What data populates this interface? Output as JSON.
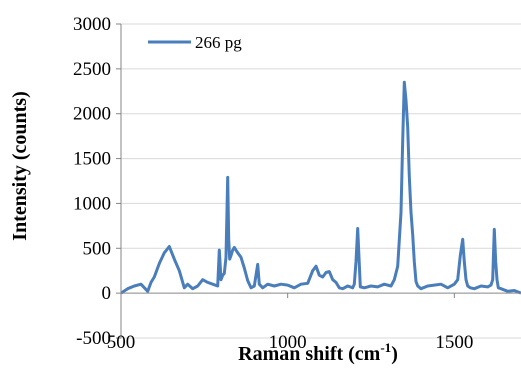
{
  "chart_data": {
    "type": "line",
    "title": "",
    "xlabel": "Raman shift (cm",
    "xlabel_sup": "-1",
    "xlabel_close": ")",
    "ylabel": "Intensity (counts)",
    "xlim": [
      500,
      1700
    ],
    "ylim": [
      -500,
      3000
    ],
    "xticks": [
      500,
      1000,
      1500
    ],
    "yticks": [
      -500,
      0,
      500,
      1000,
      1500,
      2000,
      2500,
      3000
    ],
    "grid": "horizontal",
    "legend_position": "top-left",
    "color": "#4a7ebb",
    "series": [
      {
        "name": "266 pg",
        "x": [
          500,
          520,
          540,
          560,
          580,
          590,
          600,
          615,
          630,
          645,
          660,
          675,
          690,
          700,
          715,
          730,
          745,
          760,
          775,
          790,
          795,
          800,
          805,
          810,
          815,
          820,
          823,
          826,
          830,
          835,
          840,
          850,
          860,
          870,
          880,
          890,
          900,
          905,
          910,
          915,
          925,
          940,
          960,
          980,
          1000,
          1020,
          1040,
          1060,
          1075,
          1085,
          1095,
          1105,
          1115,
          1125,
          1135,
          1145,
          1155,
          1165,
          1180,
          1195,
          1200,
          1205,
          1210,
          1218,
          1230,
          1250,
          1270,
          1290,
          1310,
          1320,
          1330,
          1340,
          1345,
          1350,
          1355,
          1360,
          1365,
          1370,
          1375,
          1380,
          1385,
          1390,
          1400,
          1420,
          1440,
          1460,
          1480,
          1500,
          1510,
          1518,
          1525,
          1530,
          1535,
          1540,
          1548,
          1560,
          1580,
          1600,
          1610,
          1615,
          1620,
          1624,
          1628,
          1632,
          1640,
          1660,
          1680,
          1700
        ],
        "y": [
          0,
          50,
          80,
          100,
          20,
          120,
          180,
          330,
          450,
          520,
          380,
          250,
          60,
          100,
          50,
          80,
          150,
          120,
          100,
          80,
          480,
          150,
          200,
          220,
          400,
          1290,
          600,
          380,
          420,
          480,
          510,
          450,
          400,
          280,
          140,
          60,
          80,
          200,
          320,
          100,
          60,
          100,
          80,
          100,
          90,
          60,
          100,
          110,
          250,
          300,
          200,
          180,
          230,
          240,
          150,
          120,
          60,
          50,
          80,
          60,
          100,
          350,
          720,
          70,
          60,
          80,
          70,
          100,
          80,
          150,
          300,
          900,
          1700,
          2350,
          2150,
          1850,
          1300,
          900,
          650,
          350,
          130,
          80,
          50,
          80,
          90,
          100,
          60,
          100,
          150,
          420,
          600,
          350,
          150,
          80,
          60,
          50,
          80,
          70,
          90,
          150,
          710,
          350,
          150,
          60,
          50,
          20,
          30,
          0
        ]
      }
    ]
  }
}
